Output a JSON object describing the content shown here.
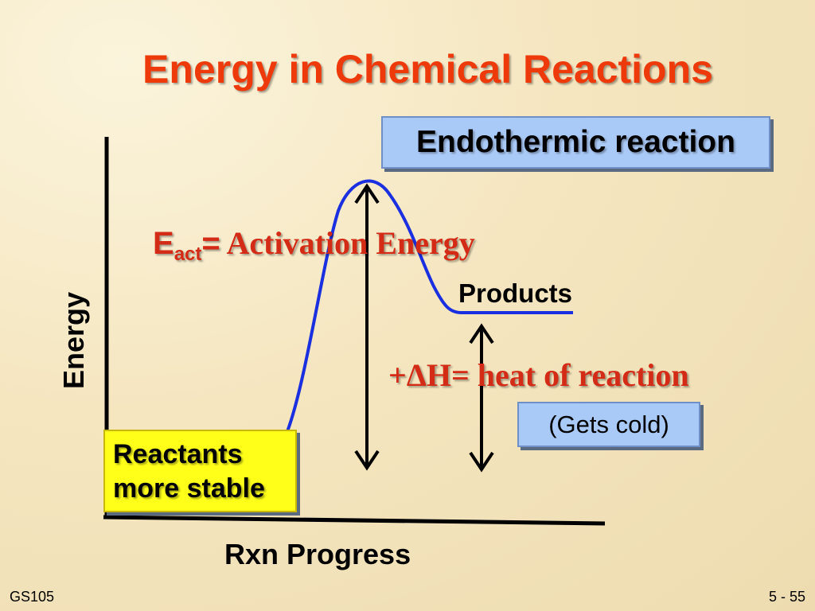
{
  "slide": {
    "title": "Energy in Chemical Reactions",
    "reaction_type_label": "Endothermic reaction",
    "activation": {
      "symbol": "E",
      "subscript": "act",
      "equals": "=",
      "text": " Activation Energy"
    },
    "heat_of_reaction": "+ΔH= heat of reaction",
    "gets_cold": "(Gets cold)",
    "products_label": "Products",
    "reactants_line1": "Reactants",
    "reactants_line2": "more stable",
    "y_axis_label": "Energy",
    "x_axis_label": "Rxn Progress",
    "footer_left": "GS105",
    "footer_right": "5 - 55"
  },
  "colors": {
    "title": "#ee3a0a",
    "annotation_red": "#d42b16",
    "curve_blue": "#1a2fe0",
    "label_box_blue": "#a9c9f6",
    "reactants_box_yellow": "#ffff1a",
    "axis_black": "#000000"
  }
}
